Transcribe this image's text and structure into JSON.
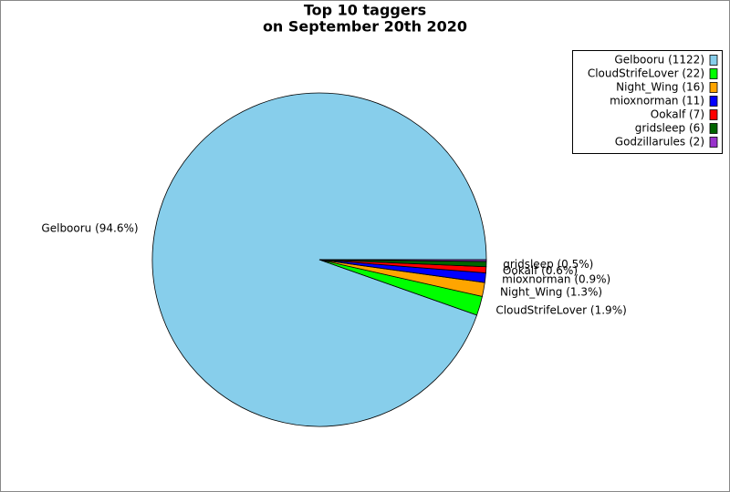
{
  "chart_data": {
    "type": "pie",
    "title_lines": [
      "Top 10 taggers",
      "on September 20th 2020"
    ],
    "categories": [
      "Gelbooru",
      "CloudStrifeLover",
      "Night_Wing",
      "mioxnorman",
      "Ookalf",
      "gridsleep",
      "Godzillarules"
    ],
    "values": [
      1122,
      22,
      16,
      11,
      7,
      6,
      2
    ],
    "value_labels": [
      "Gelbooru (94.6%)",
      "CloudStrifeLover (1.9%)",
      "Night_Wing (1.3%)",
      "mioxnorman (0.9%)",
      "Ookalf (0.6%)",
      "gridsleep (0.5%)",
      null
    ],
    "legend_labels": [
      "Gelbooru (1122)",
      "CloudStrifeLover (22)",
      "Night_Wing (16)",
      "mioxnorman (11)",
      "Ookalf (7)",
      "gridsleep (6)",
      "Godzillarules (2)"
    ],
    "colors": [
      "#87ceeb",
      "#00ff00",
      "#ffa500",
      "#0000ff",
      "#ff0000",
      "#006400",
      "#9932cc"
    ],
    "legend": "upper right"
  }
}
